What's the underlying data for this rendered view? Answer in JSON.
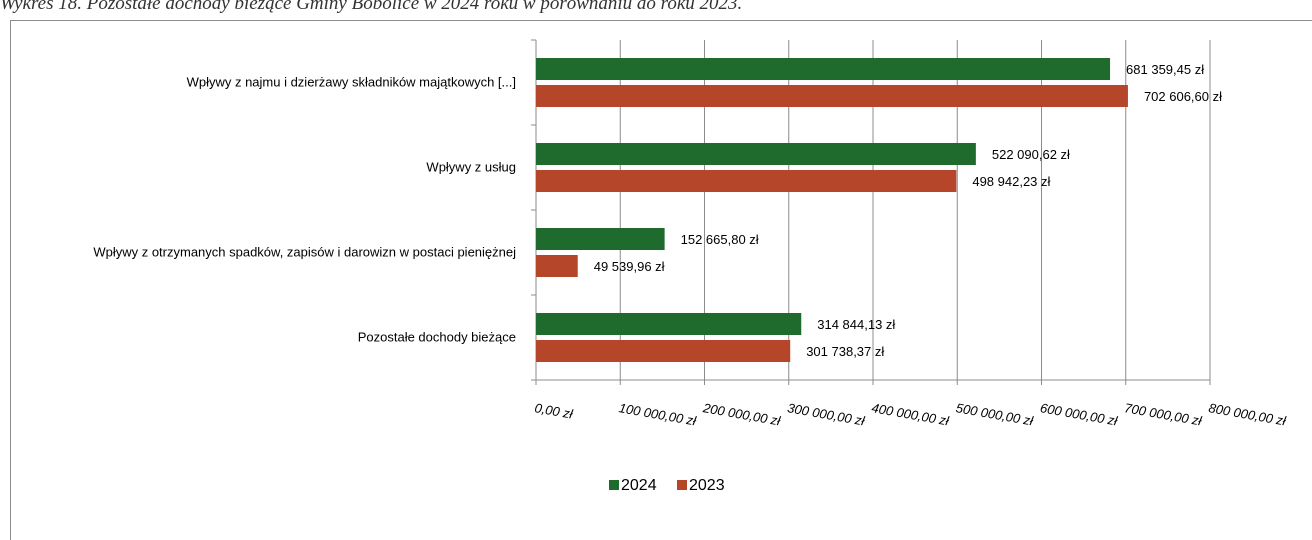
{
  "caption": "Wykres 18. Pozostałe dochody bieżące Gminy Bobolice w 2024 roku w porównaniu do roku 2023.",
  "chart_data": {
    "type": "bar",
    "orientation": "horizontal",
    "categories": [
      "Wpływy z najmu i dzierżawy składników majątkowych [...]",
      "Wpływy z usług",
      "Wpływy z otrzymanych spadków, zapisów i darowizn w postaci pieniężnej",
      "Pozostałe dochody bieżące"
    ],
    "series": [
      {
        "name": "2024",
        "color": "#1f6b2e",
        "values": [
          681359.45,
          522090.62,
          152665.8,
          314844.13
        ],
        "labels": [
          "681 359,45 zł",
          "522 090,62 zł",
          "152 665,80 zł",
          "314 844,13 zł"
        ]
      },
      {
        "name": "2023",
        "color": "#b5462a",
        "values": [
          702606.6,
          498942.23,
          49539.96,
          301738.37
        ],
        "labels": [
          "702 606,60 zł",
          "498 942,23 zł",
          "49 539,96 zł",
          "301 738,37 zł"
        ]
      }
    ],
    "xlim": [
      0,
      800000
    ],
    "x_ticks": [
      0,
      100000,
      200000,
      300000,
      400000,
      500000,
      600000,
      700000,
      800000
    ],
    "x_tick_labels": [
      "0,00 zł",
      "100 000,00 zł",
      "200 000,00 zł",
      "300 000,00 zł",
      "400 000,00 zł",
      "500 000,00 zł",
      "600 000,00 zł",
      "700 000,00 zł",
      "800 000,00 zł"
    ],
    "grid": true,
    "legend_position": "bottom",
    "title": "",
    "xlabel": "",
    "ylabel": ""
  }
}
